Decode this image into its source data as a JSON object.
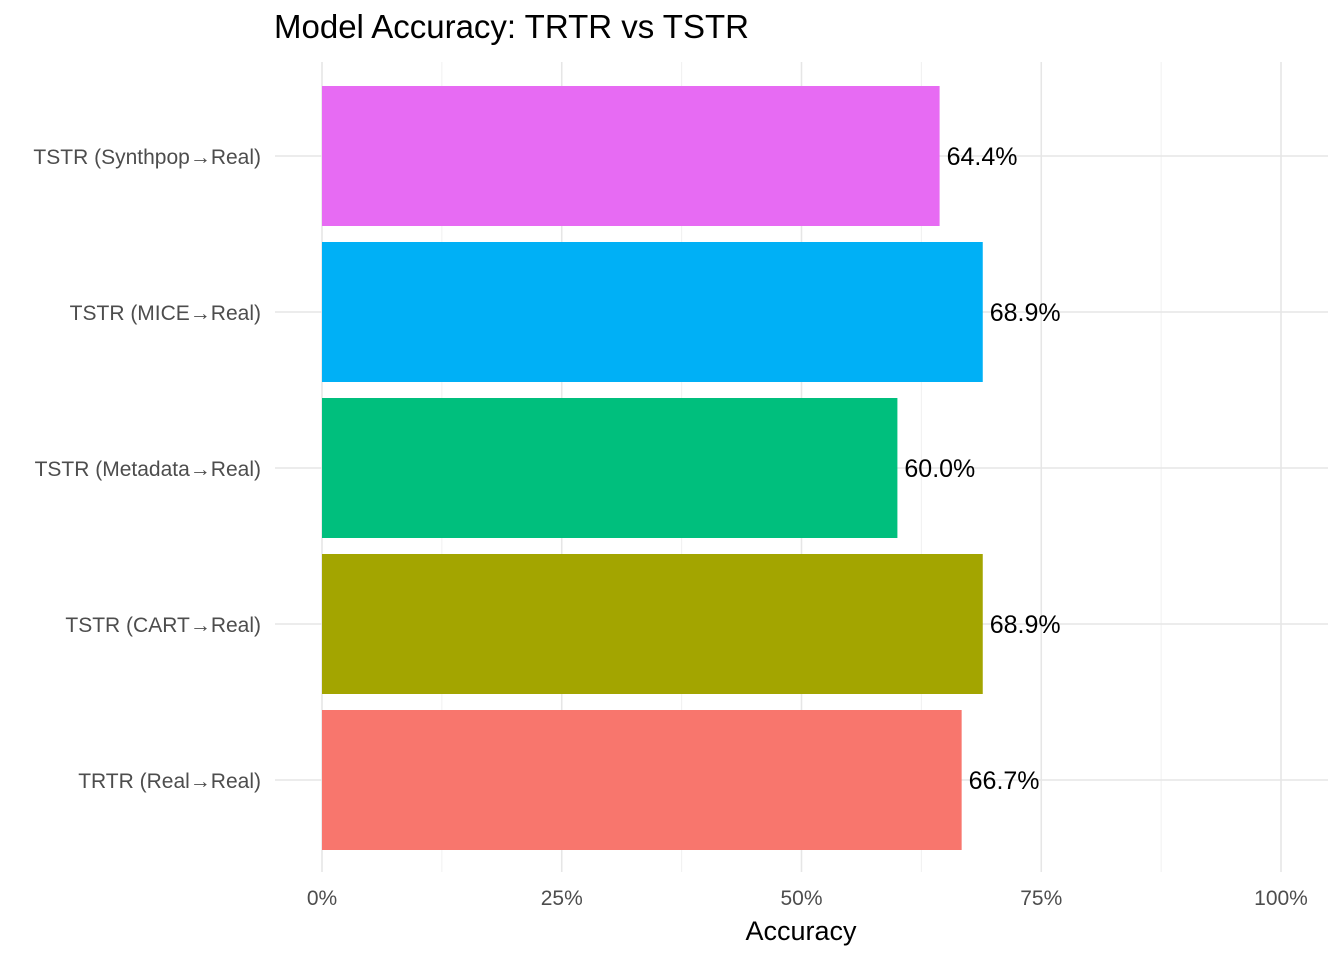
{
  "chart_data": {
    "type": "bar",
    "orientation": "horizontal",
    "title": "Model Accuracy: TRTR vs TSTR",
    "xlabel": "Accuracy",
    "ylabel": "",
    "xlim": [
      0,
      1
    ],
    "x_ticks": [
      0,
      0.25,
      0.5,
      0.75,
      1.0
    ],
    "x_tick_labels": [
      "0%",
      "25%",
      "50%",
      "75%",
      "100%"
    ],
    "grid": true,
    "legend": "none",
    "categories": [
      "TRTR (Real→Real)",
      "TSTR (CART→Real)",
      "TSTR (Metadata→Real)",
      "TSTR (MICE→Real)",
      "TSTR (Synthpop→Real)"
    ],
    "values": [
      0.667,
      0.689,
      0.6,
      0.689,
      0.644
    ],
    "data_labels": [
      "66.7%",
      "68.9%",
      "60.0%",
      "68.9%",
      "64.4%"
    ],
    "colors": [
      "#F8766D",
      "#A3A500",
      "#00BF7D",
      "#00B0F6",
      "#E76BF3"
    ]
  }
}
